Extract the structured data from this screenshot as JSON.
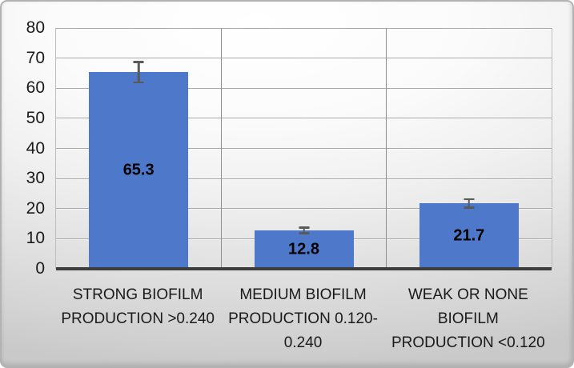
{
  "chart_data": {
    "type": "bar",
    "title": "",
    "xlabel": "",
    "ylabel": "",
    "legend": "none",
    "categories": [
      "STRONG BIOFILM PRODUCTION >0.240",
      "MEDIUM BIOFILM PRODUCTION 0.120-0.240",
      "WEAK OR NONE BIOFILM PRODUCTION <0.120"
    ],
    "category_label_lines": [
      [
        "STRONG BIOFILM",
        "PRODUCTION >0.240"
      ],
      [
        "MEDIUM BIOFILM",
        "PRODUCTION 0.120-",
        "0.240"
      ],
      [
        "WEAK OR NONE",
        "BIOFILM",
        "PRODUCTION <0.120"
      ]
    ],
    "values": [
      65.3,
      12.8,
      21.7
    ],
    "data_labels": [
      "65.3",
      "12.8",
      "21.7"
    ],
    "error_bars_plus_minus": [
      3.5,
      1.0,
      1.5
    ],
    "y_ticks": [
      0,
      10,
      20,
      30,
      40,
      50,
      60,
      70,
      80
    ],
    "ylim": [
      0,
      80
    ],
    "grid": {
      "horizontal": true,
      "vertical_category_separators": true
    },
    "colors": {
      "bar": "#4E79CA",
      "error_bar": "#595959",
      "axis_line": "#3D3D3D",
      "gridline": "#A9A9A9",
      "text": "#1A1A1A",
      "frame_border": "#B2B2B2"
    }
  }
}
